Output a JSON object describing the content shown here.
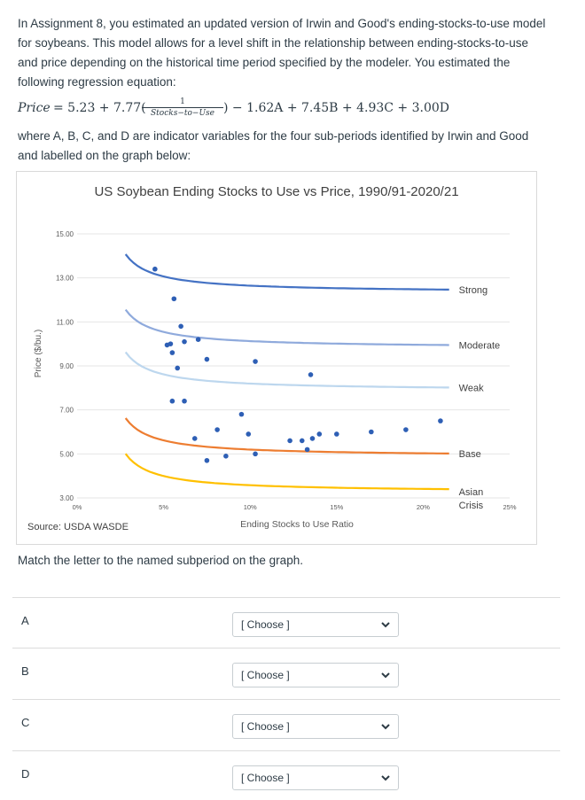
{
  "intro": {
    "line1": "In Assignment 8, you estimated an updated version of Irwin and Good's ending-stocks-to-use model",
    "line2": "for soybeans. This model allows for a level shift in the relationship between ending-stocks-to-use",
    "line3": "and price depending on the historical time period specified by the modeler. You estimated the",
    "line4": "following regression equation:"
  },
  "equation": {
    "lhs": "Price",
    "eq_part1": " = 5.23 + 7.77(",
    "frac_num": "1",
    "frac_den": "Stocks−to−Use",
    "eq_part2": ") − 1.62A + 7.45B + 4.93C + 3.00D"
  },
  "after_eq": {
    "line1": "where A, B, C, and D are indicator variables for the four sub-periods identified by Irwin and Good",
    "line2": "and labelled on the graph below:"
  },
  "chart_data": {
    "type": "scatter",
    "title": "US Soybean Ending Stocks to Use vs Price, 1990/91-2020/21",
    "xlabel": "Ending Stocks to Use Ratio",
    "ylabel": "Price ($/bu.)",
    "source": "Source: USDA WASDE",
    "xlim": [
      0,
      0.25
    ],
    "ylim": [
      3,
      15
    ],
    "x_ticks": [
      0,
      0.05,
      0.1,
      0.15,
      0.2,
      0.25
    ],
    "x_tick_labels": [
      "0%",
      "5%",
      "10%",
      "15%",
      "20%",
      "25%"
    ],
    "y_ticks": [
      3,
      5,
      7,
      9,
      11,
      13,
      15
    ],
    "y_tick_labels": [
      "3.00",
      "5.00",
      "7.00",
      "9.00",
      "11.00",
      "13.00",
      "15.00"
    ],
    "curves": [
      {
        "name": "Strong",
        "color": "#4472c4",
        "offset": 7.45,
        "x_start": 0.028
      },
      {
        "name": "Moderate",
        "color": "#8faadc",
        "offset": 4.93,
        "x_start": 0.028
      },
      {
        "name": "Weak",
        "color": "#bdd7ee",
        "offset": 3.0,
        "x_start": 0.028
      },
      {
        "name": "Base",
        "color": "#ed7d31",
        "offset": 0.0,
        "x_start": 0.028
      },
      {
        "name": "Asian Crisis",
        "color": "#ffc000",
        "offset": -1.62,
        "x_start": 0.028
      }
    ],
    "curve_labels": [
      "Strong",
      "Moderate",
      "Weak",
      "Base",
      "Asian Crisis"
    ],
    "points": [
      [
        0.045,
        13.4
      ],
      [
        0.056,
        12.05
      ],
      [
        0.06,
        10.8
      ],
      [
        0.052,
        9.95
      ],
      [
        0.054,
        10.0
      ],
      [
        0.062,
        10.1
      ],
      [
        0.055,
        9.6
      ],
      [
        0.058,
        8.9
      ],
      [
        0.07,
        10.2
      ],
      [
        0.075,
        9.3
      ],
      [
        0.103,
        9.2
      ],
      [
        0.135,
        8.6
      ],
      [
        0.055,
        7.4
      ],
      [
        0.062,
        7.4
      ],
      [
        0.095,
        6.8
      ],
      [
        0.068,
        5.7
      ],
      [
        0.081,
        6.1
      ],
      [
        0.099,
        5.9
      ],
      [
        0.123,
        5.6
      ],
      [
        0.13,
        5.6
      ],
      [
        0.136,
        5.7
      ],
      [
        0.14,
        5.9
      ],
      [
        0.15,
        5.9
      ],
      [
        0.17,
        6.0
      ],
      [
        0.19,
        6.1
      ],
      [
        0.21,
        6.5
      ],
      [
        0.075,
        4.7
      ],
      [
        0.086,
        4.9
      ],
      [
        0.103,
        5.0
      ],
      [
        0.133,
        5.2
      ]
    ]
  },
  "instruction": "Match the letter to the named subperiod on the graph.",
  "questions": [
    {
      "letter": "A",
      "select_label": "[ Choose ]"
    },
    {
      "letter": "B",
      "select_label": "[ Choose ]"
    },
    {
      "letter": "C",
      "select_label": "[ Choose ]"
    },
    {
      "letter": "D",
      "select_label": "[ Choose ]"
    }
  ]
}
